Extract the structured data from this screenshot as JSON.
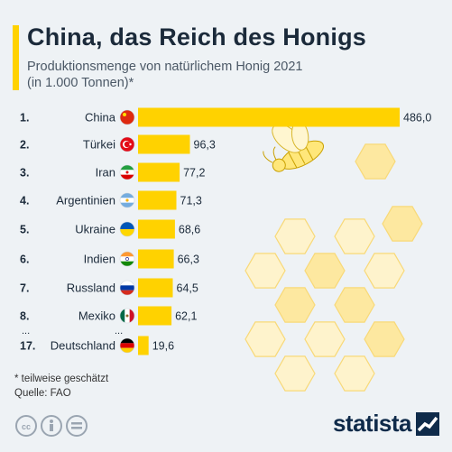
{
  "header": {
    "title": "China, das Reich des Honigs",
    "subtitle_line1": "Produktionsmenge von natürlichem Honig 2021",
    "subtitle_line2": "(in 1.000 Tonnen)*"
  },
  "footer": {
    "note": "* teilweise geschätzt",
    "source": "Quelle: FAO",
    "logo": "statista"
  },
  "colors": {
    "bar": "#ffd200",
    "background": "#eef2f5",
    "text": "#1b2a3a",
    "honeycomb": "#fde8a0"
  },
  "ellipsis": "...",
  "chart_data": {
    "type": "bar",
    "orientation": "horizontal",
    "ranks": [
      "1.",
      "2.",
      "3.",
      "4.",
      "5.",
      "6.",
      "7.",
      "8.",
      "17."
    ],
    "categories": [
      "China",
      "Türkei",
      "Iran",
      "Argentinien",
      "Ukraine",
      "Indien",
      "Russland",
      "Mexiko",
      "Deutschland"
    ],
    "values": [
      486.0,
      96.3,
      77.2,
      71.3,
      68.6,
      66.3,
      64.5,
      62.1,
      19.6
    ],
    "value_labels": [
      "486,0",
      "96,3",
      "77,2",
      "71,3",
      "68,6",
      "66,3",
      "64,5",
      "62,1",
      "19,6"
    ],
    "flags": [
      "china-flag",
      "turkey-flag",
      "iran-flag",
      "argentina-flag",
      "ukraine-flag",
      "india-flag",
      "russia-flag",
      "mexico-flag",
      "germany-flag"
    ],
    "xlim": [
      0,
      486.0
    ],
    "grid": false,
    "legend": "none"
  }
}
